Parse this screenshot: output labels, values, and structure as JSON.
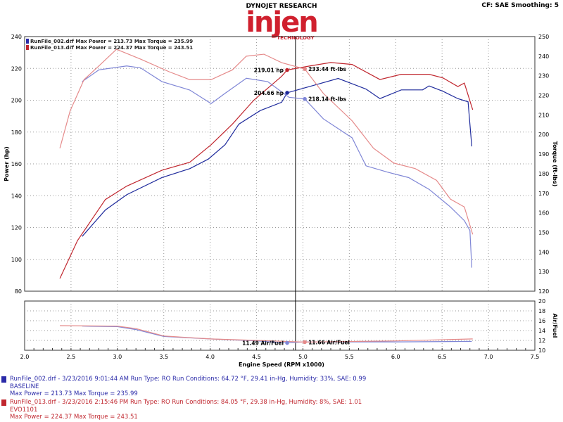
{
  "header": {
    "title": "DYNOJET RESEARCH",
    "settings": "CF: SAE  Smoothing: 5",
    "logo_text": "injen",
    "logo_sub": "TECHNOLOGY"
  },
  "chart_data": {
    "type": "line",
    "xlabel": "Engine Speed (RPM x1000)",
    "ylabel_left": "Power (hp)",
    "ylabel_right": "Torque (ft-lbs)",
    "ylabel_af": "Air/Fuel",
    "xlim": [
      2.0,
      7.5
    ],
    "ylim_power": [
      80,
      240
    ],
    "ylim_torque": [
      120,
      250
    ],
    "ylim_af": [
      10,
      20
    ],
    "xticks": [
      "2.0",
      "2.5",
      "3.0",
      "3.5",
      "4.0",
      "4.5",
      "5.0",
      "5.5",
      "6.0",
      "6.5",
      "7.0",
      "7.5"
    ],
    "power_ticks": [
      "80",
      "100",
      "120",
      "140",
      "160",
      "180",
      "200",
      "220",
      "240"
    ],
    "torque_ticks": [
      "120",
      "130",
      "140",
      "150",
      "160",
      "170",
      "180",
      "190",
      "200",
      "210",
      "220",
      "230",
      "240",
      "250"
    ],
    "af_ticks": [
      "10",
      "12",
      "14",
      "16",
      "18",
      "20"
    ],
    "grid": true,
    "colors": {
      "blue_power": "#1e2a9c",
      "blue_torque": "#7f86d6",
      "red_power": "#c0262e",
      "red_torque": "#e58a8a"
    },
    "legend": [
      {
        "text": "RunFile_002.drf Max Power = 213.73    Max Torque = 235.99",
        "color": "#2a2aa8"
      },
      {
        "text": "RunFile_013.drf Max Power = 224.37    Max Torque = 243.51",
        "color": "#c0262e"
      }
    ],
    "cursor_rpm": 4.92,
    "series": [
      {
        "id": "blue_power",
        "axis": "power",
        "x": [
          2.62,
          2.87,
          3.1,
          3.48,
          3.78,
          3.98,
          4.16,
          4.31,
          4.54,
          4.77,
          4.83,
          5.07,
          5.38,
          5.68,
          5.83,
          6.06,
          6.29,
          6.36,
          6.51,
          6.67,
          6.78,
          6.82
        ],
        "y": [
          114.4,
          131,
          140.6,
          151.4,
          157,
          163,
          172,
          185,
          193.5,
          198.7,
          204.66,
          208.6,
          213.7,
          207,
          201,
          206.5,
          206.5,
          209,
          205.6,
          201,
          199,
          171
        ]
      },
      {
        "id": "red_power",
        "axis": "power",
        "x": [
          2.38,
          2.57,
          2.87,
          3.1,
          3.48,
          3.78,
          4.01,
          4.24,
          4.47,
          4.77,
          4.83,
          5.07,
          5.3,
          5.53,
          5.83,
          6.06,
          6.36,
          6.51,
          6.67,
          6.74,
          6.83
        ],
        "y": [
          88,
          111.8,
          137.6,
          146,
          156,
          161,
          172,
          185,
          200,
          215,
          219.01,
          221.5,
          223.7,
          222.5,
          213,
          216.3,
          216.3,
          214,
          208.6,
          210.8,
          194
        ]
      },
      {
        "id": "blue_torque",
        "axis": "torque",
        "x": [
          2.62,
          2.8,
          3.1,
          3.25,
          3.48,
          3.78,
          4.01,
          4.16,
          4.39,
          4.62,
          4.85,
          5.02,
          5.22,
          5.53,
          5.68,
          5.91,
          6.14,
          6.36,
          6.59,
          6.74,
          6.8,
          6.82
        ],
        "y": [
          227,
          233,
          235,
          234,
          227,
          222.7,
          215.8,
          221,
          228.7,
          227,
          219,
          218.14,
          208,
          198.3,
          184,
          180.8,
          178,
          172,
          163,
          156,
          151,
          132
        ]
      },
      {
        "id": "red_torque",
        "axis": "torque",
        "x": [
          2.38,
          2.49,
          2.64,
          2.8,
          2.99,
          3.25,
          3.56,
          3.78,
          4.01,
          4.24,
          4.39,
          4.58,
          4.77,
          5.02,
          5.22,
          5.53,
          5.76,
          5.98,
          6.21,
          6.44,
          6.59,
          6.74,
          6.83
        ],
        "y": [
          193,
          212,
          228,
          235,
          243.5,
          238.5,
          232,
          228,
          228,
          233,
          240,
          241,
          236.7,
          233.44,
          221,
          207,
          193,
          185.4,
          182.6,
          176.6,
          167,
          163,
          149
        ]
      },
      {
        "id": "blue_af",
        "axis": "af",
        "x": [
          2.62,
          3.0,
          3.2,
          3.5,
          4.0,
          4.5,
          4.83,
          5.0,
          6.0,
          6.82
        ],
        "y": [
          14.9,
          14.8,
          14.2,
          12.8,
          12.3,
          11.9,
          11.49,
          11.7,
          11.7,
          11.8
        ]
      },
      {
        "id": "red_af",
        "axis": "af",
        "x": [
          2.38,
          3.0,
          3.2,
          3.5,
          4.0,
          4.5,
          5.02,
          6.0,
          6.83
        ],
        "y": [
          15,
          14.9,
          14.4,
          12.9,
          12.3,
          12.0,
          11.66,
          11.9,
          12.3
        ]
      }
    ],
    "markers": [
      {
        "series": "red_power",
        "x": 4.83,
        "y": 219.01,
        "label": "219.01 hp",
        "side": "left"
      },
      {
        "series": "red_torque",
        "x": 5.02,
        "y": 233.44,
        "label": "233.44 ft-lbs",
        "side": "right"
      },
      {
        "series": "blue_power",
        "x": 4.83,
        "y": 204.66,
        "label": "204.66 hp",
        "side": "left"
      },
      {
        "series": "blue_torque",
        "x": 5.02,
        "y": 218.14,
        "label": "218.14 ft-lbs",
        "side": "right"
      },
      {
        "series": "blue_af",
        "x": 4.83,
        "y": 11.49,
        "label": "11.49 Air/Fuel",
        "side": "left"
      },
      {
        "series": "red_af",
        "x": 5.02,
        "y": 11.66,
        "label": "11.66 Air/Fuel",
        "side": "right"
      }
    ]
  },
  "runs": [
    {
      "line1": "RunFile_002.drf - 3/23/2016 9:01:44 AM  Run Type: RO  Run Conditions: 64.72 °F, 29.41 in-Hg,  Humidity: 33%, SAE: 0.99",
      "line2": "BASELINE",
      "line3": "Max Power = 213.73  Max Torque = 235.99",
      "color": "#2a2aa8"
    },
    {
      "line1": "RunFile_013.drf - 3/23/2016 2:15:46 PM  Run Type: RO  Run Conditions: 84.05 °F, 29.38 in-Hg,  Humidity:  8%, SAE: 1.01",
      "line2": "EVO1101",
      "line3": "Max Power = 224.37  Max Torque = 243.51",
      "color": "#c0262e"
    }
  ]
}
